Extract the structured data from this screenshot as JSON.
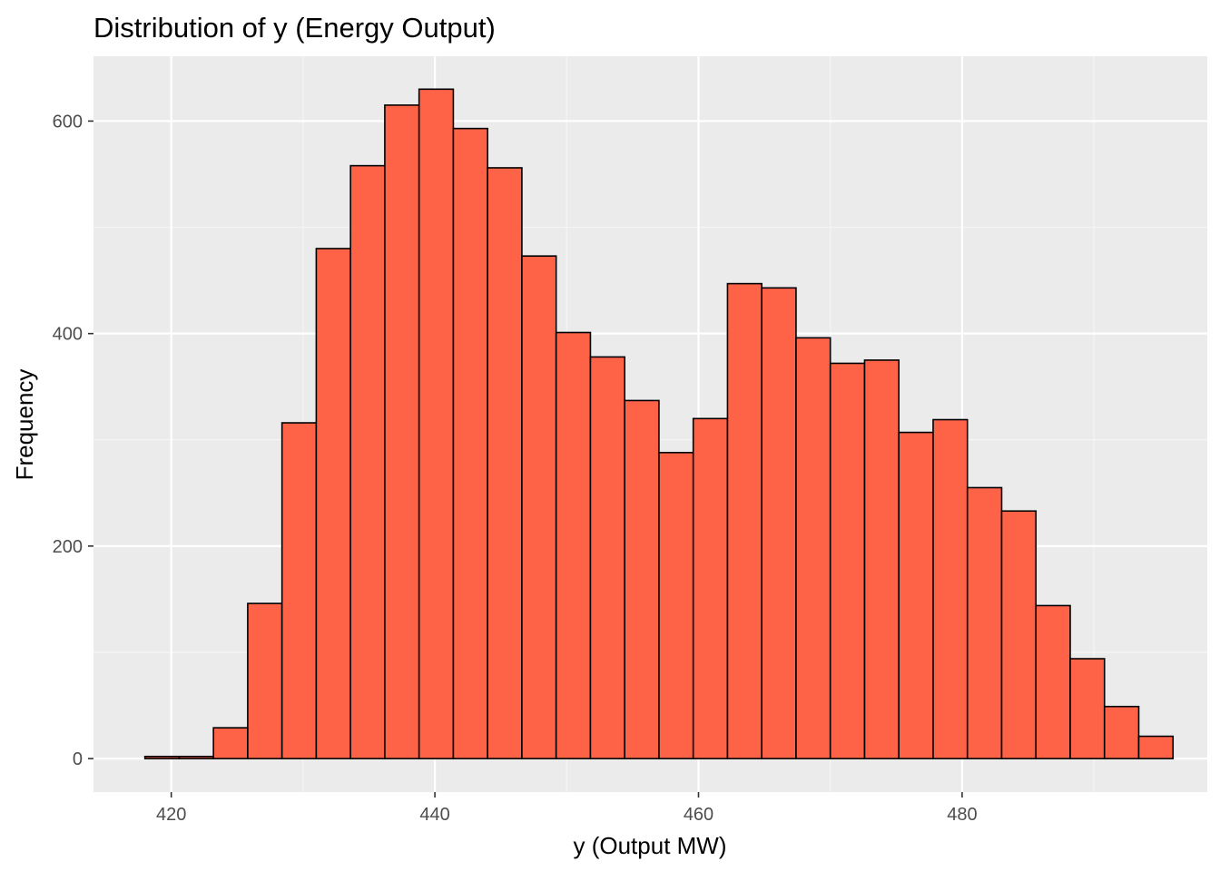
{
  "chart_data": {
    "type": "bar",
    "title": "Distribution of y (Energy Output)",
    "xlabel": "y (Output MW)",
    "ylabel": "Frequency",
    "xlim": [
      414.1,
      498.6
    ],
    "ylim": [
      -31.5,
      661
    ],
    "x_ticks": [
      420,
      440,
      460,
      480
    ],
    "y_ticks": [
      0,
      200,
      400,
      600
    ],
    "bin_width": 2.6,
    "bins": [
      {
        "x": 419.3,
        "count": 2
      },
      {
        "x": 421.9,
        "count": 2
      },
      {
        "x": 424.5,
        "count": 29
      },
      {
        "x": 427.1,
        "count": 146
      },
      {
        "x": 429.7,
        "count": 316
      },
      {
        "x": 432.3,
        "count": 480
      },
      {
        "x": 434.9,
        "count": 558
      },
      {
        "x": 437.5,
        "count": 615
      },
      {
        "x": 440.1,
        "count": 630
      },
      {
        "x": 442.7,
        "count": 593
      },
      {
        "x": 445.3,
        "count": 556
      },
      {
        "x": 447.9,
        "count": 473
      },
      {
        "x": 450.5,
        "count": 401
      },
      {
        "x": 453.1,
        "count": 378
      },
      {
        "x": 455.7,
        "count": 337
      },
      {
        "x": 458.3,
        "count": 288
      },
      {
        "x": 460.9,
        "count": 320
      },
      {
        "x": 463.5,
        "count": 447
      },
      {
        "x": 466.1,
        "count": 443
      },
      {
        "x": 468.7,
        "count": 396
      },
      {
        "x": 471.3,
        "count": 372
      },
      {
        "x": 473.9,
        "count": 375
      },
      {
        "x": 476.5,
        "count": 307
      },
      {
        "x": 479.1,
        "count": 319
      },
      {
        "x": 481.7,
        "count": 255
      },
      {
        "x": 484.3,
        "count": 233
      },
      {
        "x": 486.9,
        "count": 144
      },
      {
        "x": 489.5,
        "count": 94
      },
      {
        "x": 492.1,
        "count": 49
      },
      {
        "x": 494.7,
        "count": 21
      }
    ],
    "grid": true,
    "colors": {
      "panel_background": "#EBEBEB",
      "grid_major": "#FFFFFF",
      "grid_minor": "#F5F5F5",
      "bar_fill": "#FF6347",
      "bar_outline": "#000000",
      "tick_label": "#4D4D4D",
      "tick_mark": "#333333"
    }
  }
}
